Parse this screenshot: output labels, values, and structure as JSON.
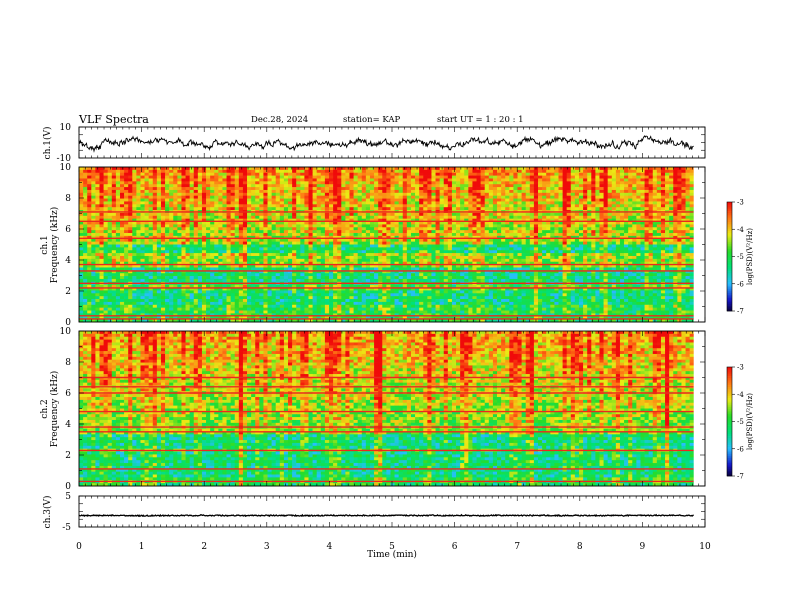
{
  "header": {
    "title": "VLF Spectra",
    "date": "Dec.28, 2024",
    "station": "station= KAP",
    "start_ut": "start  UT  =   1 : 20 : 1"
  },
  "colors": {
    "trace": "#000000",
    "frame": "#000000",
    "background": "#ffffff"
  },
  "chart_data": [
    {
      "id": "ch1-waveform",
      "type": "line",
      "ylabel": "ch.1(V)",
      "ylim": [
        -10,
        10
      ],
      "yticks": [
        "10",
        "-10"
      ],
      "xlim": [
        0,
        10
      ],
      "x_extent_min": 9.82,
      "baseline_volts": 0,
      "noise_amplitude_volts": 2.6,
      "legend": "none"
    },
    {
      "id": "ch1-spectrogram",
      "type": "heatmap",
      "ylabel_line1": "ch.1",
      "ylabel_line2": "Frequency  (kHz)",
      "ylim_khz": [
        0,
        10
      ],
      "yticks": [
        "0",
        "2",
        "4",
        "6",
        "8",
        "10"
      ],
      "xlim_min": [
        0,
        10
      ],
      "x_extent_min": 9.82,
      "colorbar": {
        "label": "log(PSD)(V²/Hz)",
        "range": [
          -7,
          -3
        ],
        "ticks": [
          "-3",
          "-4",
          "-5",
          "-6",
          "-7"
        ]
      },
      "quiet_bands_khz": [
        [
          1.1,
          2.0
        ],
        [
          2.4,
          3.6
        ],
        [
          4.4,
          5.0
        ]
      ],
      "lines_khz": [
        0.2,
        0.4,
        2.2,
        2.5,
        3.3,
        3.7,
        5.4,
        6.5,
        7.1
      ],
      "bursts_min": [
        0.35,
        0.8,
        1.7,
        2.6,
        3.7,
        4.1,
        4.9,
        5.9,
        6.3,
        7.3,
        7.8,
        8.4,
        9.1,
        9.6
      ]
    },
    {
      "id": "ch2-spectrogram",
      "type": "heatmap",
      "ylabel_line1": "ch.2",
      "ylabel_line2": "Frequency  (kHz)",
      "ylim_khz": [
        0,
        10
      ],
      "yticks": [
        "0",
        "2",
        "4",
        "6",
        "8",
        "10"
      ],
      "xlim_min": [
        0,
        10
      ],
      "x_extent_min": 9.82,
      "colorbar": {
        "label": "log(PSD)(V²/Hz)",
        "range": [
          -7,
          -3
        ],
        "ticks": [
          "-3",
          "-4",
          "-5",
          "-6",
          "-7"
        ]
      },
      "quiet_bands_khz": [
        [
          0.6,
          2.3
        ],
        [
          2.5,
          3.4
        ]
      ],
      "lines_khz": [
        0.3,
        1.1,
        2.3,
        3.5,
        3.8,
        4.8,
        6.0,
        6.4,
        7.0
      ],
      "bursts_min": [
        0.4,
        1.2,
        1.9,
        2.6,
        3.6,
        4.0,
        4.8,
        5.6,
        6.2,
        7.0,
        7.2,
        7.9,
        8.6,
        9.4
      ]
    },
    {
      "id": "ch3-waveform",
      "type": "line",
      "ylabel": "ch.3(V)",
      "ylim": [
        -5,
        5
      ],
      "yticks": [
        "5",
        "-5"
      ],
      "xlim": [
        0,
        10
      ],
      "x_extent_min": 9.82,
      "baseline_volts": -1.3,
      "noise_amplitude_volts": 0.35,
      "xlabel": "Time  (min)",
      "xticks": [
        "0",
        "1",
        "2",
        "3",
        "4",
        "5",
        "6",
        "7",
        "8",
        "9",
        "10"
      ],
      "legend": "none"
    }
  ]
}
